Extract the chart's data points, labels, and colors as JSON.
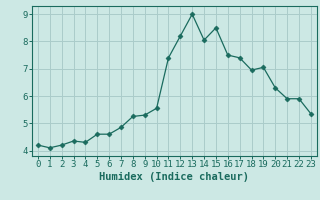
{
  "x": [
    0,
    1,
    2,
    3,
    4,
    5,
    6,
    7,
    8,
    9,
    10,
    11,
    12,
    13,
    14,
    15,
    16,
    17,
    18,
    19,
    20,
    21,
    22,
    23
  ],
  "y": [
    4.2,
    4.1,
    4.2,
    4.35,
    4.3,
    4.6,
    4.6,
    4.85,
    5.25,
    5.3,
    5.55,
    7.4,
    8.2,
    9.0,
    8.05,
    8.5,
    7.5,
    7.4,
    6.95,
    7.05,
    6.3,
    5.9,
    5.9,
    5.35
  ],
  "line_color": "#1a6b5e",
  "marker": "D",
  "marker_size": 2.5,
  "bg_color": "#cce8e4",
  "grid_color": "#aaccca",
  "xlabel": "Humidex (Indice chaleur)",
  "ylabel": "",
  "ylim": [
    3.8,
    9.3
  ],
  "xlim": [
    -0.5,
    23.5
  ],
  "xticks": [
    0,
    1,
    2,
    3,
    4,
    5,
    6,
    7,
    8,
    9,
    10,
    11,
    12,
    13,
    14,
    15,
    16,
    17,
    18,
    19,
    20,
    21,
    22,
    23
  ],
  "yticks": [
    4,
    5,
    6,
    7,
    8,
    9
  ],
  "label_color": "#1a6b5e",
  "xlabel_fontsize": 7.5,
  "tick_fontsize": 6.5
}
